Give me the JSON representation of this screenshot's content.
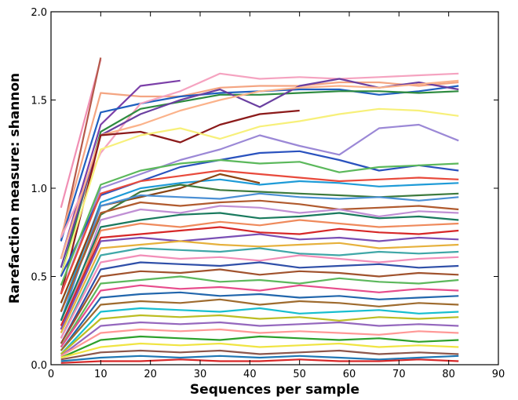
{
  "chart_data": {
    "type": "line",
    "title": "",
    "xlabel": "Sequences per sample",
    "ylabel": "Rarefaction measure: shannon",
    "xlim": [
      0,
      90
    ],
    "ylim": [
      0,
      2.0
    ],
    "xticks": [
      0,
      10,
      20,
      30,
      40,
      50,
      60,
      70,
      80,
      90
    ],
    "yticks": [
      0.0,
      0.5,
      1.0,
      1.5,
      2.0
    ],
    "xtick_labels": [
      "0",
      "10",
      "20",
      "30",
      "40",
      "50",
      "60",
      "70",
      "80",
      "90"
    ],
    "ytick_labels": [
      "0.0",
      "0.5",
      "1.0",
      "1.5",
      "2.0"
    ],
    "grid": false,
    "legend": "none",
    "depths": [
      2,
      10,
      18,
      26,
      34,
      42,
      50,
      58,
      66,
      74,
      82
    ],
    "series": [
      {
        "color": "#f18fb4",
        "values": [
          0.89,
          1.73
        ]
      },
      {
        "color": "#b5594b",
        "values": [
          0.7,
          1.74
        ]
      },
      {
        "color": "#f4a582",
        "values": [
          0.72,
          1.54,
          1.52,
          1.52,
          1.57,
          1.58,
          1.58,
          1.6,
          1.6,
          1.58,
          1.6
        ]
      },
      {
        "color": "#7b3fa8",
        "values": [
          0.6,
          1.36,
          1.58,
          1.61
        ]
      },
      {
        "color": "#1f5fbf",
        "values": [
          0.7,
          1.43,
          1.48,
          1.52,
          1.54,
          1.55,
          1.56,
          1.56,
          1.53,
          1.55,
          1.58
        ]
      },
      {
        "color": "#f5a3c0",
        "values": [
          0.72,
          1.2,
          1.48,
          1.55,
          1.65,
          1.62,
          1.63,
          1.62,
          1.63,
          1.64,
          1.65
        ]
      },
      {
        "color": "#2e8b3f",
        "values": [
          0.5,
          1.32,
          1.45,
          1.49,
          1.53,
          1.53,
          1.54,
          1.55,
          1.55,
          1.54,
          1.55
        ]
      },
      {
        "color": "#6a3fa0",
        "values": [
          0.55,
          1.3,
          1.42,
          1.5,
          1.56,
          1.46,
          1.58,
          1.62,
          1.57,
          1.6,
          1.56
        ]
      },
      {
        "color": "#fbb28a",
        "values": [
          0.6,
          1.3,
          1.36,
          1.44,
          1.5,
          1.55,
          1.57,
          1.58,
          1.57,
          1.59,
          1.61
        ]
      },
      {
        "color": "#8b1a1a",
        "values": [
          0.4,
          1.3,
          1.32,
          1.26,
          1.36,
          1.42,
          1.44
        ]
      },
      {
        "color": "#f7f07a",
        "values": [
          0.5,
          1.22,
          1.3,
          1.34,
          1.28,
          1.35,
          1.38,
          1.42,
          1.45,
          1.44,
          1.41
        ]
      },
      {
        "color": "#9b88d6",
        "values": [
          0.4,
          1.0,
          1.08,
          1.16,
          1.22,
          1.3,
          1.24,
          1.19,
          1.34,
          1.36,
          1.27
        ]
      },
      {
        "color": "#2a52be",
        "values": [
          0.5,
          0.96,
          1.04,
          1.12,
          1.16,
          1.2,
          1.21,
          1.16,
          1.1,
          1.13,
          1.1
        ]
      },
      {
        "color": "#5bb85b",
        "values": [
          0.45,
          1.02,
          1.1,
          1.14,
          1.16,
          1.14,
          1.15,
          1.09,
          1.12,
          1.13,
          1.14
        ]
      },
      {
        "color": "#e84a3c",
        "values": [
          0.4,
          0.97,
          1.04,
          1.07,
          1.1,
          1.08,
          1.06,
          1.04,
          1.05,
          1.06,
          1.05
        ]
      },
      {
        "color": "#1e9bd7",
        "values": [
          0.3,
          0.92,
          1.0,
          1.03,
          1.05,
          1.02,
          1.04,
          1.03,
          1.01,
          1.02,
          1.03
        ]
      },
      {
        "color": "#8b4513",
        "values": [
          0.35,
          0.9,
          0.95,
          1.0,
          1.08,
          1.03
        ]
      },
      {
        "color": "#3d7a3d",
        "values": [
          0.3,
          0.85,
          0.98,
          1.02,
          0.99,
          0.98,
          0.97,
          0.96,
          0.95,
          0.96,
          0.97
        ]
      },
      {
        "color": "#4a8fd4",
        "values": [
          0.25,
          0.9,
          0.96,
          0.95,
          0.94,
          0.97,
          0.95,
          0.94,
          0.95,
          0.93,
          0.95
        ]
      },
      {
        "color": "#b05a2e",
        "values": [
          0.3,
          0.86,
          0.92,
          0.9,
          0.92,
          0.93,
          0.91,
          0.88,
          0.89,
          0.9,
          0.88
        ]
      },
      {
        "color": "#c08fd4",
        "values": [
          0.2,
          0.82,
          0.88,
          0.86,
          0.9,
          0.89,
          0.86,
          0.88,
          0.84,
          0.87,
          0.86
        ]
      },
      {
        "color": "#1a7a5e",
        "values": [
          0.25,
          0.78,
          0.82,
          0.85,
          0.86,
          0.83,
          0.84,
          0.86,
          0.83,
          0.84,
          0.82
        ]
      },
      {
        "color": "#ef8a5c",
        "values": [
          0.2,
          0.76,
          0.8,
          0.78,
          0.81,
          0.79,
          0.82,
          0.8,
          0.78,
          0.79,
          0.8
        ]
      },
      {
        "color": "#d62828",
        "values": [
          0.22,
          0.72,
          0.74,
          0.76,
          0.78,
          0.75,
          0.74,
          0.77,
          0.75,
          0.74,
          0.76
        ]
      },
      {
        "color": "#7a4fb5",
        "values": [
          0.2,
          0.7,
          0.72,
          0.7,
          0.72,
          0.74,
          0.71,
          0.72,
          0.7,
          0.72,
          0.71
        ]
      },
      {
        "color": "#e6b13c",
        "values": [
          0.18,
          0.66,
          0.68,
          0.7,
          0.68,
          0.67,
          0.68,
          0.69,
          0.66,
          0.67,
          0.68
        ]
      },
      {
        "color": "#3fa7a7",
        "values": [
          0.15,
          0.62,
          0.66,
          0.65,
          0.64,
          0.66,
          0.63,
          0.62,
          0.64,
          0.63,
          0.64
        ]
      },
      {
        "color": "#f28eb8",
        "values": [
          0.15,
          0.58,
          0.62,
          0.6,
          0.61,
          0.59,
          0.62,
          0.6,
          0.58,
          0.6,
          0.61
        ]
      },
      {
        "color": "#2f4fa8",
        "values": [
          0.12,
          0.54,
          0.58,
          0.57,
          0.56,
          0.58,
          0.55,
          0.56,
          0.57,
          0.55,
          0.56
        ]
      },
      {
        "color": "#a0522d",
        "values": [
          0.12,
          0.5,
          0.53,
          0.52,
          0.54,
          0.51,
          0.53,
          0.52,
          0.5,
          0.52,
          0.51
        ]
      },
      {
        "color": "#5cb85c",
        "values": [
          0.1,
          0.46,
          0.48,
          0.5,
          0.47,
          0.48,
          0.46,
          0.49,
          0.47,
          0.46,
          0.48
        ]
      },
      {
        "color": "#e74c8b",
        "values": [
          0.1,
          0.42,
          0.45,
          0.43,
          0.44,
          0.42,
          0.45,
          0.43,
          0.41,
          0.43,
          0.42
        ]
      },
      {
        "color": "#2166ac",
        "values": [
          0.08,
          0.38,
          0.4,
          0.41,
          0.39,
          0.4,
          0.38,
          0.39,
          0.37,
          0.38,
          0.39
        ]
      },
      {
        "color": "#9e6b2e",
        "values": [
          0.08,
          0.34,
          0.36,
          0.35,
          0.37,
          0.34,
          0.36,
          0.35,
          0.33,
          0.35,
          0.34
        ]
      },
      {
        "color": "#17becf",
        "values": [
          0.06,
          0.3,
          0.32,
          0.31,
          0.3,
          0.32,
          0.29,
          0.3,
          0.31,
          0.29,
          0.3
        ]
      },
      {
        "color": "#bcbd22",
        "values": [
          0.06,
          0.26,
          0.28,
          0.27,
          0.28,
          0.26,
          0.27,
          0.25,
          0.27,
          0.26,
          0.27
        ]
      },
      {
        "color": "#9467bd",
        "values": [
          0.05,
          0.22,
          0.24,
          0.23,
          0.24,
          0.22,
          0.23,
          0.24,
          0.22,
          0.23,
          0.22
        ]
      },
      {
        "color": "#ff9896",
        "values": [
          0.05,
          0.18,
          0.2,
          0.19,
          0.2,
          0.18,
          0.19,
          0.18,
          0.17,
          0.19,
          0.18
        ]
      },
      {
        "color": "#2ca02c",
        "values": [
          0.04,
          0.14,
          0.16,
          0.15,
          0.14,
          0.16,
          0.15,
          0.14,
          0.15,
          0.13,
          0.14
        ]
      },
      {
        "color": "#f0e442",
        "values": [
          0.04,
          0.1,
          0.12,
          0.11,
          0.12,
          0.1,
          0.11,
          0.12,
          0.1,
          0.11,
          0.1
        ]
      },
      {
        "color": "#8c564b",
        "values": [
          0.03,
          0.07,
          0.08,
          0.07,
          0.08,
          0.06,
          0.07,
          0.08,
          0.06,
          0.07,
          0.06
        ]
      },
      {
        "color": "#1f77b4",
        "values": [
          0.02,
          0.04,
          0.05,
          0.04,
          0.05,
          0.04,
          0.05,
          0.04,
          0.03,
          0.04,
          0.05
        ]
      },
      {
        "color": "#d62728",
        "values": [
          0.01,
          0.02,
          0.02,
          0.03,
          0.02,
          0.02,
          0.03,
          0.02,
          0.02,
          0.03,
          0.02
        ]
      }
    ]
  }
}
